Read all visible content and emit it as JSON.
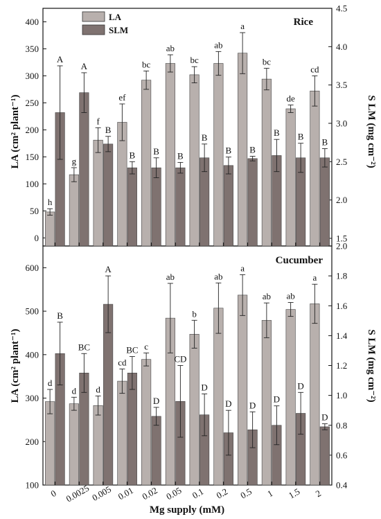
{
  "chart_data": [
    {
      "type": "bar",
      "title": "Rice",
      "xlabel": "Mg supply (mM)",
      "ylabel": "LA (cm² plant⁻¹)",
      "y2label": "S LM (mg cm⁻²)",
      "categories": [
        "0",
        "0.0025",
        "0.005",
        "0.01",
        "0.02",
        "0.05",
        "0.1",
        "0.2",
        "0.5",
        "1",
        "1.5",
        "2"
      ],
      "ylim": [
        -15,
        425
      ],
      "y2lim": [
        1.4,
        4.5
      ],
      "yticks": [
        "0",
        "50",
        "100",
        "150",
        "200",
        "250",
        "300",
        "350",
        "400"
      ],
      "y2ticks": [
        "1.5",
        "2.0",
        "2.5",
        "3.0",
        "3.5",
        "4.0",
        "4.5"
      ],
      "series": [
        {
          "name": "LA",
          "axis": "left",
          "color": "#b8b0ad",
          "values": [
            48,
            117,
            181,
            214,
            292,
            323,
            302,
            323,
            342,
            294,
            239,
            272
          ],
          "errors": [
            6,
            13,
            23,
            34,
            17,
            16,
            15,
            22,
            38,
            20,
            7,
            28
          ],
          "letters": [
            "h",
            "g",
            "f",
            "ef",
            "bc",
            "ab",
            "bc",
            "ab",
            "a",
            "bc",
            "de",
            "cd"
          ]
        },
        {
          "name": "SLM",
          "axis": "right",
          "color": "#7f7270",
          "values": [
            3.14,
            3.4,
            2.73,
            2.42,
            2.42,
            2.42,
            2.55,
            2.45,
            2.54,
            2.58,
            2.55,
            2.55
          ],
          "errors": [
            0.61,
            0.26,
            0.1,
            0.08,
            0.13,
            0.07,
            0.18,
            0.11,
            0.03,
            0.21,
            0.19,
            0.12
          ],
          "letters": [
            "A",
            "A",
            "B",
            "B",
            "B",
            "B",
            "B",
            "B",
            "B",
            "B",
            "B",
            "B"
          ]
        }
      ]
    },
    {
      "type": "bar",
      "title": "Cucumber",
      "xlabel": "Mg supply (mM)",
      "ylabel": "LA (cm² plant⁻¹)",
      "y2label": "S LM (mg cm⁻²)",
      "categories": [
        "0",
        "0.0025",
        "0.005",
        "0.01",
        "0.02",
        "0.05",
        "0.1",
        "0.2",
        "0.5",
        "1",
        "1.5",
        "2"
      ],
      "ylim": [
        100,
        650
      ],
      "y2lim": [
        0.4,
        2.0
      ],
      "yticks": [
        "100",
        "200",
        "300",
        "400",
        "500",
        "600"
      ],
      "y2ticks": [
        "0.4",
        "0.6",
        "0.8",
        "1.0",
        "1.2",
        "1.4",
        "1.6",
        "1.8",
        "2.0"
      ],
      "series": [
        {
          "name": "LA",
          "axis": "left",
          "color": "#b8b0ad",
          "values": [
            292,
            287,
            283,
            339,
            389,
            484,
            447,
            507,
            537,
            479,
            504,
            517
          ],
          "errors": [
            28,
            15,
            22,
            28,
            15,
            80,
            32,
            58,
            47,
            40,
            16,
            45
          ],
          "letters": [
            "d",
            "d",
            "d",
            "cd",
            "c",
            "ab",
            "b",
            "ab",
            "a",
            "ab",
            "ab",
            "a"
          ]
        },
        {
          "name": "SLM",
          "axis": "right",
          "color": "#7f7270",
          "values": [
            1.28,
            1.15,
            1.61,
            1.15,
            0.86,
            0.96,
            0.87,
            0.75,
            0.77,
            0.8,
            0.88,
            0.79
          ],
          "errors": [
            0.21,
            0.13,
            0.19,
            0.11,
            0.06,
            0.24,
            0.14,
            0.15,
            0.12,
            0.13,
            0.14,
            0.02
          ],
          "letters": [
            "B",
            "BC",
            "A",
            "BC",
            "D",
            "CD",
            "D",
            "D",
            "D",
            "D",
            "D",
            "D"
          ]
        }
      ]
    }
  ]
}
